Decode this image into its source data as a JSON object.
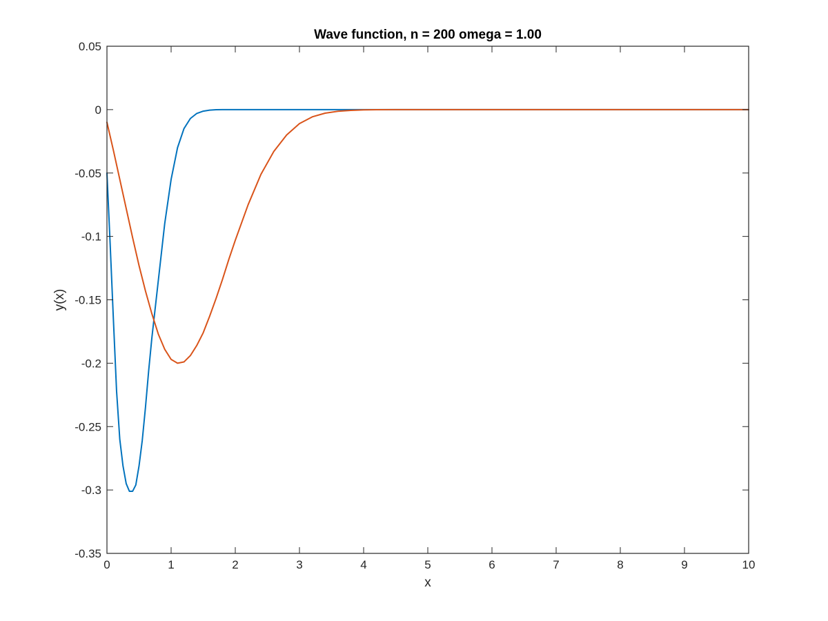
{
  "chart_data": {
    "type": "line",
    "title": "Wave function, n = 200 omega = 1.00",
    "xlabel": "x",
    "ylabel": "y(x)",
    "xlim": [
      0,
      10
    ],
    "ylim": [
      -0.35,
      0.05
    ],
    "xticks": [
      0,
      1,
      2,
      3,
      4,
      5,
      6,
      7,
      8,
      9,
      10
    ],
    "xtick_labels": [
      "0",
      "1",
      "2",
      "3",
      "4",
      "5",
      "6",
      "7",
      "8",
      "9",
      "10"
    ],
    "yticks": [
      -0.35,
      -0.3,
      -0.25,
      -0.2,
      -0.15,
      -0.1,
      -0.05,
      0,
      0.05
    ],
    "ytick_labels": [
      "-0.35",
      "-0.3",
      "-0.25",
      "-0.2",
      "-0.15",
      "-0.1",
      "-0.05",
      "0",
      "0.05"
    ],
    "grid": false,
    "series": [
      {
        "color": "#0072BD",
        "x": [
          0,
          0.05,
          0.1,
          0.15,
          0.2,
          0.25,
          0.3,
          0.35,
          0.4,
          0.45,
          0.5,
          0.55,
          0.6,
          0.65,
          0.7,
          0.8,
          0.9,
          1.0,
          1.1,
          1.2,
          1.3,
          1.4,
          1.5,
          1.6,
          1.7,
          1.8,
          2.0,
          2.5,
          3,
          4,
          5,
          6,
          7,
          8,
          9,
          10
        ],
        "y": [
          -0.05,
          -0.106,
          -0.165,
          -0.222,
          -0.26,
          -0.281,
          -0.295,
          -0.301,
          -0.301,
          -0.296,
          -0.281,
          -0.261,
          -0.235,
          -0.206,
          -0.18,
          -0.135,
          -0.09,
          -0.055,
          -0.03,
          -0.015,
          -0.007,
          -0.003,
          -0.0012,
          -0.0004,
          -0.0001,
          -3e-05,
          0,
          0,
          0,
          0,
          0,
          0,
          0,
          0,
          0,
          0
        ]
      },
      {
        "color": "#D95319",
        "x": [
          0,
          0.1,
          0.2,
          0.3,
          0.4,
          0.5,
          0.6,
          0.7,
          0.8,
          0.9,
          1.0,
          1.1,
          1.2,
          1.3,
          1.4,
          1.5,
          1.6,
          1.7,
          1.8,
          1.9,
          2.0,
          2.2,
          2.4,
          2.6,
          2.8,
          3.0,
          3.2,
          3.4,
          3.6,
          3.8,
          4.0,
          4.2,
          4.5,
          5,
          6,
          7,
          8,
          9,
          10
        ],
        "y": [
          -0.01,
          -0.032,
          -0.055,
          -0.078,
          -0.101,
          -0.123,
          -0.143,
          -0.161,
          -0.177,
          -0.189,
          -0.197,
          -0.2,
          -0.199,
          -0.194,
          -0.186,
          -0.176,
          -0.163,
          -0.149,
          -0.134,
          -0.118,
          -0.103,
          -0.075,
          -0.051,
          -0.033,
          -0.02,
          -0.011,
          -0.0057,
          -0.0028,
          -0.0013,
          -0.0006,
          -0.0002,
          -0.0001,
          -2e-05,
          0,
          0,
          0,
          0,
          0,
          0
        ]
      }
    ]
  }
}
